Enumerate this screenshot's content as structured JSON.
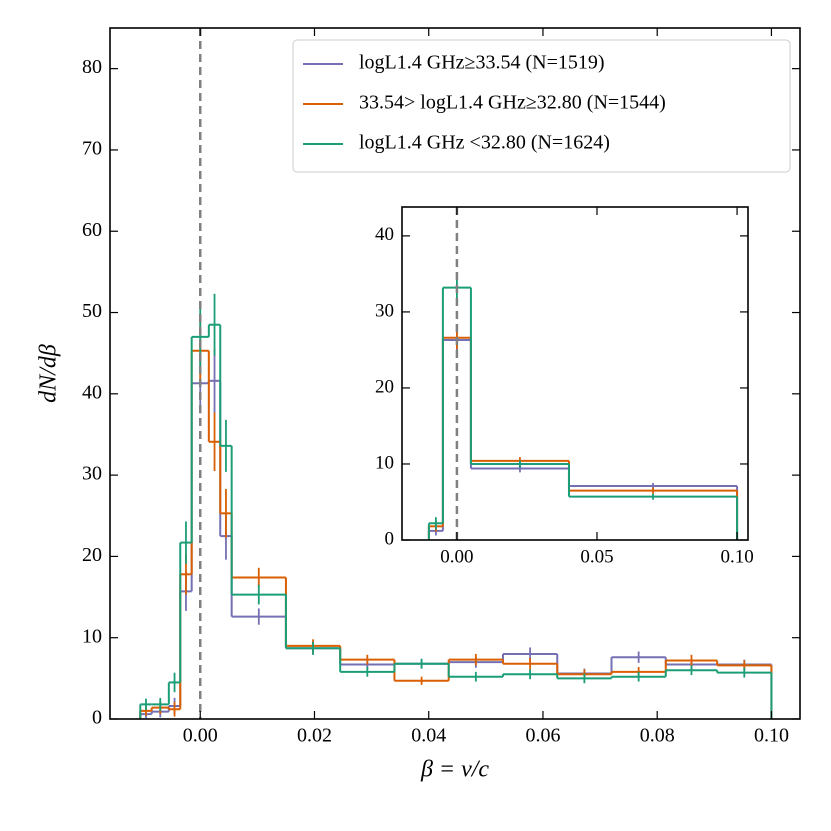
{
  "chart_data": [
    {
      "type": "histogram",
      "xlabel": "β = v/c",
      "ylabel": "dN/dβ",
      "bins": [
        -0.0105,
        -0.0085,
        -0.0055,
        -0.0035,
        -0.0015,
        0.0015,
        0.0035,
        0.0055,
        0.015,
        0.0245,
        0.034,
        0.0435,
        0.053,
        0.0625,
        0.072,
        0.0815,
        0.0905,
        0.1
      ],
      "series": [
        {
          "name": "logL1.4 GHz≥33.54 (N=1519)",
          "color": "#7570b3",
          "values": [
            0.6,
            0.9,
            1.6,
            15.7,
            41.3,
            41.6,
            22.5,
            12.6,
            8.7,
            6.7,
            6.8,
            7.0,
            8.0,
            5.6,
            7.6,
            6.7,
            6.7
          ],
          "errors": [
            0.5,
            0.7,
            1.0,
            2.4,
            3.7,
            4.0,
            2.9,
            1.0,
            0.8,
            0.6,
            0.6,
            0.7,
            0.8,
            0.6,
            0.7,
            0.6,
            0.6
          ]
        },
        {
          "name": "33.54> logL1.4 GHz≥32.80 (N=1544)",
          "color": "#d95f02",
          "values": [
            1.0,
            1.4,
            1.2,
            17.8,
            45.3,
            34.1,
            25.3,
            17.4,
            9.0,
            7.3,
            4.7,
            7.3,
            6.8,
            5.5,
            5.8,
            7.2,
            6.6
          ],
          "errors": [
            0.6,
            0.8,
            0.9,
            2.5,
            3.8,
            3.6,
            3.0,
            1.2,
            0.8,
            0.6,
            0.5,
            0.7,
            0.7,
            0.6,
            0.6,
            0.7,
            0.6
          ]
        },
        {
          "name": "logL1.4 GHz <32.80 (N=1624)",
          "color": "#1b9e77",
          "values": [
            1.8,
            1.8,
            4.5,
            21.7,
            47.0,
            48.5,
            33.6,
            15.3,
            8.7,
            5.8,
            6.8,
            5.2,
            5.5,
            5.0,
            5.2,
            6.0,
            5.7
          ],
          "errors": [
            0.7,
            0.8,
            1.2,
            2.6,
            3.6,
            3.8,
            3.2,
            1.2,
            0.8,
            0.6,
            0.6,
            0.6,
            0.6,
            0.6,
            0.6,
            0.6,
            0.6
          ]
        }
      ],
      "vline": 0,
      "xlim": [
        -0.0158,
        0.105
      ],
      "ylim": [
        0,
        85
      ],
      "xticks": [
        {
          "value": 0,
          "label": "0.00"
        },
        {
          "value": 0.02,
          "label": "0.02"
        },
        {
          "value": 0.04,
          "label": "0.04"
        },
        {
          "value": 0.06,
          "label": "0.06"
        },
        {
          "value": 0.08,
          "label": "0.08"
        },
        {
          "value": 0.1,
          "label": "0.10"
        }
      ],
      "yticks": [
        0,
        10,
        20,
        30,
        40,
        50,
        60,
        70,
        80
      ],
      "legend": "upper right"
    },
    {
      "type": "histogram",
      "bins": [
        -0.01,
        -0.005,
        0.005,
        0.04,
        0.1
      ],
      "series": [
        {
          "color": "#7570b3",
          "values": [
            1.2,
            26.3,
            9.4,
            7.1
          ],
          "errors": [
            0.6,
            1.5,
            0.5,
            0.4
          ]
        },
        {
          "color": "#d95f02",
          "values": [
            1.8,
            26.6,
            10.4,
            6.5
          ],
          "errors": [
            0.7,
            1.5,
            0.5,
            0.4
          ]
        },
        {
          "color": "#1b9e77",
          "values": [
            2.2,
            33.2,
            10.0,
            5.7
          ],
          "errors": [
            0.8,
            1.7,
            0.5,
            0.4
          ]
        }
      ],
      "vline": 0,
      "xlim": [
        -0.0196,
        0.1039
      ],
      "ylim": [
        0,
        43.8
      ],
      "xticks": [
        {
          "value": 0,
          "label": "0.00"
        },
        {
          "value": 0.05,
          "label": "0.05"
        },
        {
          "value": 0.1,
          "label": "0.10"
        }
      ],
      "yticks": [
        0,
        10,
        20,
        30,
        40
      ]
    }
  ]
}
